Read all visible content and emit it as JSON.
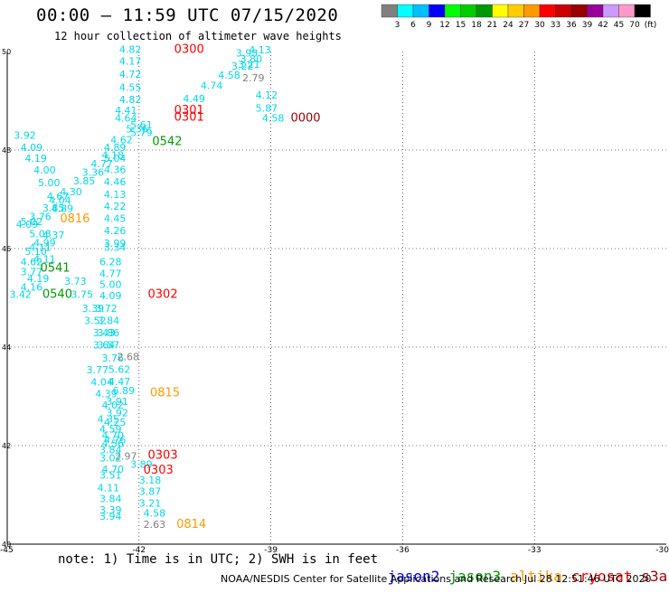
{
  "header": {
    "title": "00:00 – 11:59 UTC 07/15/2020",
    "subtitle": "12 hour collection of altimeter wave heights"
  },
  "colorbar": {
    "colors": [
      "#808080",
      "#00ffff",
      "#00bfff",
      "#0000ff",
      "#00ff00",
      "#00cc00",
      "#009900",
      "#ffff00",
      "#ffcc00",
      "#ff9900",
      "#ff0000",
      "#cc0000",
      "#990000",
      "#990099",
      "#cc99ff",
      "#ff99cc",
      "#000000"
    ],
    "labels": [
      "3",
      "6",
      "9",
      "12",
      "15",
      "18",
      "21",
      "24",
      "27",
      "30",
      "33",
      "36",
      "39",
      "42",
      "45",
      "70",
      "(ft)"
    ]
  },
  "map": {
    "lat_ticks": [
      "50",
      "48",
      "46",
      "44",
      "42",
      "40"
    ],
    "lon_ticks": [
      "-45",
      "-42",
      "-39",
      "-36",
      "-33",
      "-30"
    ],
    "lat_range": [
      40,
      50
    ],
    "lon_range": [
      -45,
      -30
    ],
    "wave_heights": [
      {
        "v": "4.82",
        "lat": 49.97,
        "lon": -42.45
      },
      {
        "v": "4.13",
        "lat": 49.96,
        "lon": -39.5
      },
      {
        "v": "3.93",
        "lat": 49.9,
        "lon": -39.8
      },
      {
        "v": "4.17",
        "lat": 49.73,
        "lon": -42.45
      },
      {
        "v": "3.80",
        "lat": 49.78,
        "lon": -39.7
      },
      {
        "v": "3.21",
        "lat": 49.67,
        "lon": -39.75
      },
      {
        "v": "3.22",
        "lat": 49.63,
        "lon": -39.9
      },
      {
        "v": "4.72",
        "lat": 49.47,
        "lon": -42.45
      },
      {
        "v": "4.58",
        "lat": 49.45,
        "lon": -40.2
      },
      {
        "v": "2.79",
        "lat": 49.39,
        "lon": -39.65
      },
      {
        "v": "4.55",
        "lat": 49.2,
        "lon": -42.45
      },
      {
        "v": "4.74",
        "lat": 49.24,
        "lon": -40.6
      },
      {
        "v": "4.12",
        "lat": 49.05,
        "lon": -39.35
      },
      {
        "v": "4.82",
        "lat": 48.95,
        "lon": -42.45
      },
      {
        "v": "4.49",
        "lat": 48.97,
        "lon": -41.0
      },
      {
        "v": "5.87",
        "lat": 48.78,
        "lon": -39.35
      },
      {
        "v": "4.41",
        "lat": 48.73,
        "lon": -42.55
      },
      {
        "v": "4.58",
        "lat": 48.58,
        "lon": -39.2
      },
      {
        "v": "4.64",
        "lat": 48.58,
        "lon": -42.55
      },
      {
        "v": "5.61",
        "lat": 48.44,
        "lon": -42.2
      },
      {
        "v": "5.36",
        "lat": 48.36,
        "lon": -42.3
      },
      {
        "v": "5.79",
        "lat": 48.28,
        "lon": -42.2
      },
      {
        "v": "4.62",
        "lat": 48.14,
        "lon": -42.65
      },
      {
        "v": "4.89",
        "lat": 47.98,
        "lon": -42.8
      },
      {
        "v": "3.92",
        "lat": 48.23,
        "lon": -44.85
      },
      {
        "v": "4.09",
        "lat": 47.98,
        "lon": -44.7
      },
      {
        "v": "4.19",
        "lat": 47.76,
        "lon": -44.6
      },
      {
        "v": "4.18",
        "lat": 47.83,
        "lon": -42.85
      },
      {
        "v": "5.04",
        "lat": 47.76,
        "lon": -42.8
      },
      {
        "v": "4.77",
        "lat": 47.65,
        "lon": -43.1
      },
      {
        "v": "4.00",
        "lat": 47.52,
        "lon": -44.4
      },
      {
        "v": "3.36",
        "lat": 47.48,
        "lon": -43.3
      },
      {
        "v": "4.36",
        "lat": 47.53,
        "lon": -42.8
      },
      {
        "v": "5.00",
        "lat": 47.27,
        "lon": -44.3
      },
      {
        "v": "3.85",
        "lat": 47.3,
        "lon": -43.5
      },
      {
        "v": "4.46",
        "lat": 47.28,
        "lon": -42.8
      },
      {
        "v": "4.30",
        "lat": 47.08,
        "lon": -43.8
      },
      {
        "v": "4.67",
        "lat": 46.99,
        "lon": -44.1
      },
      {
        "v": "4.13",
        "lat": 47.03,
        "lon": -42.8
      },
      {
        "v": "4.04",
        "lat": 46.91,
        "lon": -44.05
      },
      {
        "v": "4.22",
        "lat": 46.79,
        "lon": -42.8
      },
      {
        "v": "4.89",
        "lat": 46.74,
        "lon": -44.0
      },
      {
        "v": "3.85",
        "lat": 46.75,
        "lon": -44.2
      },
      {
        "v": "4.45",
        "lat": 46.54,
        "lon": -42.8
      },
      {
        "v": "3.76",
        "lat": 46.58,
        "lon": -44.5
      },
      {
        "v": "5.02",
        "lat": 46.48,
        "lon": -44.7
      },
      {
        "v": "4.09",
        "lat": 46.42,
        "lon": -44.8
      },
      {
        "v": "4.26",
        "lat": 46.29,
        "lon": -42.8
      },
      {
        "v": "5.03",
        "lat": 46.23,
        "lon": -44.5
      },
      {
        "v": "4.37",
        "lat": 46.2,
        "lon": -44.2
      },
      {
        "v": "3.99",
        "lat": 46.04,
        "lon": -42.8
      },
      {
        "v": "4.99",
        "lat": 46.05,
        "lon": -44.4
      },
      {
        "v": "4.11",
        "lat": 45.95,
        "lon": -44.5
      },
      {
        "v": "3.34",
        "lat": 45.95,
        "lon": -42.8
      },
      {
        "v": "5.10",
        "lat": 45.87,
        "lon": -44.6
      },
      {
        "v": "4.11",
        "lat": 45.72,
        "lon": -44.4
      },
      {
        "v": "4.62",
        "lat": 45.66,
        "lon": -44.7
      },
      {
        "v": "6.28",
        "lat": 45.66,
        "lon": -42.9
      },
      {
        "v": "3.77",
        "lat": 45.46,
        "lon": -44.7
      },
      {
        "v": "4.77",
        "lat": 45.42,
        "lon": -42.9
      },
      {
        "v": "4.19",
        "lat": 45.32,
        "lon": -44.55
      },
      {
        "v": "3.73",
        "lat": 45.27,
        "lon": -43.7
      },
      {
        "v": "5.00",
        "lat": 45.2,
        "lon": -42.9
      },
      {
        "v": "4.16",
        "lat": 45.15,
        "lon": -44.7
      },
      {
        "v": "3.42",
        "lat": 45.0,
        "lon": -44.95
      },
      {
        "v": "3.75",
        "lat": 45.0,
        "lon": -43.55
      },
      {
        "v": "4.09",
        "lat": 44.97,
        "lon": -42.9
      },
      {
        "v": "3.39",
        "lat": 44.72,
        "lon": -43.3
      },
      {
        "v": "3.72",
        "lat": 44.72,
        "lon": -43.0
      },
      {
        "v": "3.52",
        "lat": 44.47,
        "lon": -43.25
      },
      {
        "v": "3.84",
        "lat": 44.47,
        "lon": -42.95
      },
      {
        "v": "3.43",
        "lat": 44.22,
        "lon": -43.05
      },
      {
        "v": "3.86",
        "lat": 44.22,
        "lon": -42.95
      },
      {
        "v": "3.64",
        "lat": 43.97,
        "lon": -43.05
      },
      {
        "v": "3.57",
        "lat": 43.97,
        "lon": -42.95
      },
      {
        "v": "3.76",
        "lat": 43.71,
        "lon": -42.85
      },
      {
        "v": "2.68",
        "lat": 43.73,
        "lon": -42.5
      },
      {
        "v": "3.77",
        "lat": 43.47,
        "lon": -43.2
      },
      {
        "v": "5.62",
        "lat": 43.48,
        "lon": -42.7
      },
      {
        "v": "4.04",
        "lat": 43.22,
        "lon": -43.1
      },
      {
        "v": "4.47",
        "lat": 43.23,
        "lon": -42.7
      },
      {
        "v": "4.39",
        "lat": 42.98,
        "lon": -43.0
      },
      {
        "v": "6.89",
        "lat": 43.05,
        "lon": -42.6
      },
      {
        "v": "3.91",
        "lat": 42.83,
        "lon": -42.75
      },
      {
        "v": "4.02",
        "lat": 42.75,
        "lon": -42.85
      },
      {
        "v": "3.92",
        "lat": 42.6,
        "lon": -42.75
      },
      {
        "v": "4.35",
        "lat": 42.47,
        "lon": -42.95
      },
      {
        "v": "4.25",
        "lat": 42.4,
        "lon": -42.8
      },
      {
        "v": "4.59",
        "lat": 42.27,
        "lon": -42.9
      },
      {
        "v": "4.70",
        "lat": 42.14,
        "lon": -42.85
      },
      {
        "v": "4.76",
        "lat": 42.05,
        "lon": -42.8
      },
      {
        "v": "4.56",
        "lat": 41.97,
        "lon": -42.85
      },
      {
        "v": "3.84",
        "lat": 41.84,
        "lon": -42.9
      },
      {
        "v": "2.97",
        "lat": 41.72,
        "lon": -42.55
      },
      {
        "v": "3.02",
        "lat": 41.68,
        "lon": -42.9
      },
      {
        "v": "3.89",
        "lat": 41.55,
        "lon": -42.2
      },
      {
        "v": "4.70",
        "lat": 41.45,
        "lon": -42.85
      },
      {
        "v": "3.51",
        "lat": 41.33,
        "lon": -42.9
      },
      {
        "v": "3.18",
        "lat": 41.23,
        "lon": -42.0
      },
      {
        "v": "4.11",
        "lat": 41.07,
        "lon": -42.95
      },
      {
        "v": "3.87",
        "lat": 41.0,
        "lon": -42.0
      },
      {
        "v": "3.84",
        "lat": 40.85,
        "lon": -42.9
      },
      {
        "v": "3.21",
        "lat": 40.76,
        "lon": -42.0
      },
      {
        "v": "3.39",
        "lat": 40.62,
        "lon": -42.9
      },
      {
        "v": "4.58",
        "lat": 40.56,
        "lon": -41.9
      },
      {
        "v": "3.94",
        "lat": 40.5,
        "lon": -42.9
      },
      {
        "v": "2.63",
        "lat": 40.33,
        "lon": -41.9
      }
    ],
    "pass_times": [
      {
        "t": "0300",
        "lat": 49.97,
        "lon": -41.2,
        "sat": "cryosat"
      },
      {
        "t": "0301",
        "lat": 48.73,
        "lon": -41.2,
        "sat": "cryosat"
      },
      {
        "t": "0301",
        "lat": 48.6,
        "lon": -41.2,
        "sat": "cryosat"
      },
      {
        "t": "0000",
        "lat": 48.58,
        "lon": -38.55,
        "sat": "s3a"
      },
      {
        "t": "0542",
        "lat": 48.1,
        "lon": -41.7,
        "sat": "jason3"
      },
      {
        "t": "0816",
        "lat": 46.53,
        "lon": -43.8,
        "sat": "altika"
      },
      {
        "t": "0541",
        "lat": 45.53,
        "lon": -44.25,
        "sat": "jason3"
      },
      {
        "t": "0540",
        "lat": 45.0,
        "lon": -44.2,
        "sat": "jason3"
      },
      {
        "t": "0302",
        "lat": 45.0,
        "lon": -41.8,
        "sat": "cryosat"
      },
      {
        "t": "0815",
        "lat": 43.0,
        "lon": -41.75,
        "sat": "altika"
      },
      {
        "t": "0303",
        "lat": 41.73,
        "lon": -41.8,
        "sat": "cryosat"
      },
      {
        "t": "0303",
        "lat": 41.43,
        "lon": -41.9,
        "sat": "cryosat"
      },
      {
        "t": "0814",
        "lat": 40.33,
        "lon": -41.15,
        "sat": "altika"
      }
    ]
  },
  "footer": {
    "note": "note: 1) Time is in UTC; 2) SWH is in feet",
    "legend": [
      {
        "label": "jason2",
        "color": "#0000ff"
      },
      {
        "label": "jason3",
        "color": "#009900"
      },
      {
        "label": "altika",
        "color": "#ff9900"
      },
      {
        "label": "cryosat",
        "color": "#ff0000"
      },
      {
        "label": "s3a",
        "color": "#990000"
      }
    ],
    "credit": "NOAA/NESDIS Center for Satellite Applications and Research",
    "timestamp": "Jul 28 12:51:46 UTC 2020"
  }
}
